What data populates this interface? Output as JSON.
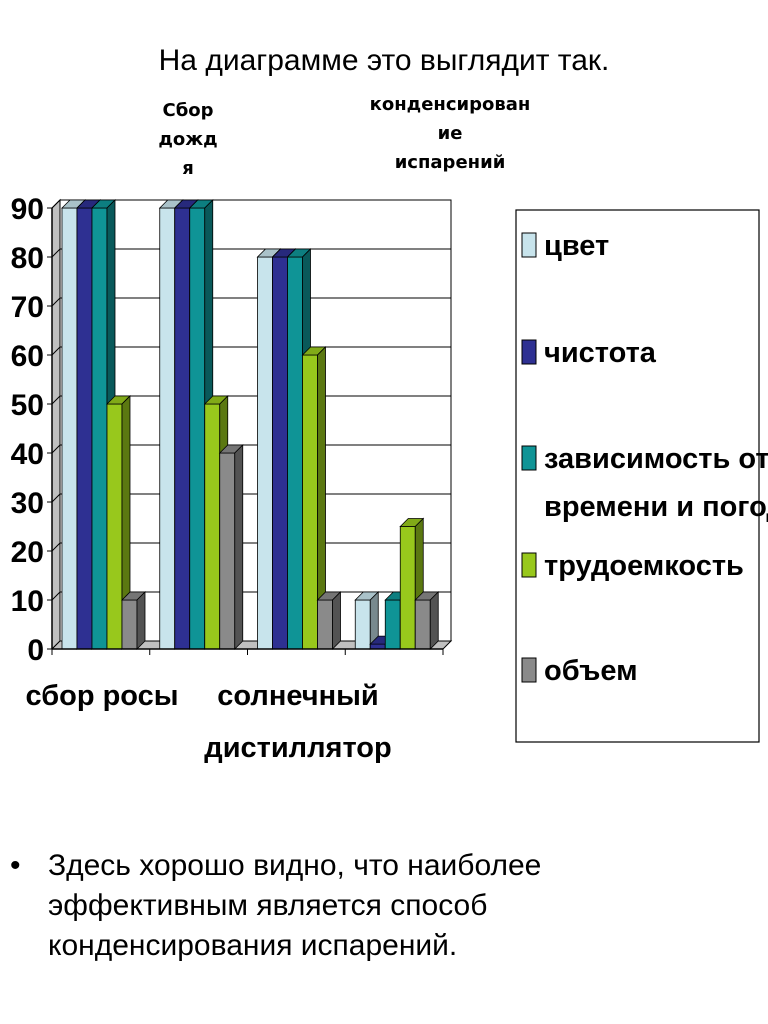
{
  "slide": {
    "title": "На диаграмме это выглядит так.",
    "rain_label": "Сбор\nдожд\nя",
    "condensation_label": "конденсирован\nие\nиспарений",
    "bullet": "Здесь хорошо видно, что наиболее эффективным является способ конденсирования испарений."
  },
  "chart_data": {
    "type": "bar",
    "categories": [
      "сбор росы",
      "Сбор дождя",
      "солнечный дистиллятор",
      "конденсирование испарений"
    ],
    "category_axis_labels": [
      "сбор росы",
      "солнечный\nдистиллятор"
    ],
    "series": [
      {
        "name": "цвет",
        "values": [
          90,
          90,
          80,
          10
        ],
        "color": "#c8e4ec"
      },
      {
        "name": "чистота",
        "values": [
          90,
          90,
          80,
          1
        ],
        "color": "#2e3092"
      },
      {
        "name": "зависимость от\nвремени и погоды",
        "values": [
          90,
          90,
          80,
          10
        ],
        "color": "#0f9496"
      },
      {
        "name": "трудоемкость",
        "values": [
          50,
          50,
          60,
          25
        ],
        "color": "#98c81c"
      },
      {
        "name": "объем",
        "values": [
          10,
          40,
          10,
          10
        ],
        "color": "#8a8a8a"
      }
    ],
    "yticks": [
      "0",
      "10",
      "20",
      "30",
      "40",
      "50",
      "60",
      "70",
      "80",
      "90"
    ],
    "ylim": [
      0,
      90
    ],
    "grid": true,
    "legend_position": "right"
  }
}
